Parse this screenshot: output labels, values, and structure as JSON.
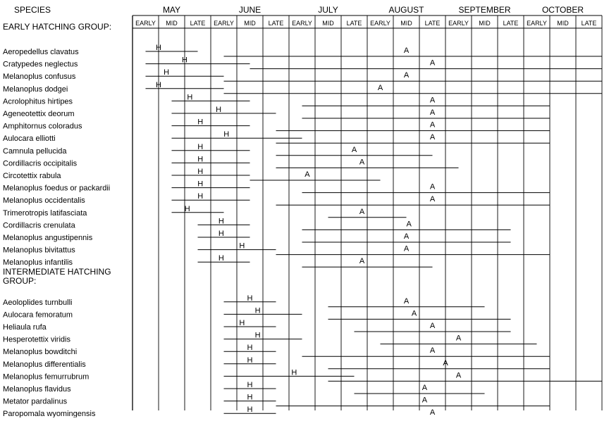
{
  "header": {
    "species_label": "SPECIES",
    "months": [
      "MAY",
      "JUNE",
      "JULY",
      "AUGUST",
      "SEPTEMBER",
      "OCTOBER"
    ],
    "periods": [
      "EARLY",
      "MID",
      "LATE"
    ]
  },
  "marker_labels": {
    "hatch": "H",
    "adult": "A"
  },
  "groups": [
    {
      "title": [
        "EARLY HATCHING GROUP:"
      ],
      "species": [
        {
          "name": "Aeropedellus clavatus",
          "nymph": [
            0.5,
            2.5
          ],
          "hatch": 1.0,
          "adult_period": [
            3.5,
            18
          ],
          "adult": 10.5
        },
        {
          "name": "Cratypedes neglectus",
          "nymph": [
            0.5,
            4.5
          ],
          "hatch": 2.0,
          "adult_period": [
            4.5,
            18
          ],
          "adult": 11.5
        },
        {
          "name": "Melanoplus confusus",
          "nymph": [
            0.5,
            3.5
          ],
          "hatch": 1.3,
          "adult_period": [
            3.5,
            18
          ],
          "adult": 10.5
        },
        {
          "name": "Melanoplus dodgei",
          "nymph": [
            0.5,
            3.5
          ],
          "hatch": 1.0,
          "adult_period": [
            3.5,
            18
          ],
          "adult": 9.5
        },
        {
          "name": "Acrolophitus hirtipes",
          "nymph": [
            1.5,
            4.5
          ],
          "hatch": 2.2,
          "adult_period": [
            6.5,
            16
          ],
          "adult": 11.5
        },
        {
          "name": "Ageneotettix deorum",
          "nymph": [
            1.5,
            5.5
          ],
          "hatch": 3.3,
          "adult_period": [
            6.5,
            16
          ],
          "adult": 11.5
        },
        {
          "name": "Amphitornus coloradus",
          "nymph": [
            1.5,
            4.5
          ],
          "hatch": 2.6,
          "adult_period": [
            5.5,
            16
          ],
          "adult": 11.5
        },
        {
          "name": "Aulocara elliotti",
          "nymph": [
            1.5,
            6.5
          ],
          "hatch": 3.6,
          "adult_period": [
            5.5,
            16
          ],
          "adult": 11.5
        },
        {
          "name": "Camnula pellucida",
          "nymph": [
            1.5,
            4.5
          ],
          "hatch": 2.6,
          "adult_period": [
            5.5,
            11.5
          ],
          "adult": 8.5
        },
        {
          "name": "Cordillacris occipitalis",
          "nymph": [
            1.5,
            4.5
          ],
          "hatch": 2.6,
          "adult_period": [
            5.5,
            12.5
          ],
          "adult": 8.8
        },
        {
          "name": "Circotettix rabula",
          "nymph": [
            1.5,
            4.5
          ],
          "hatch": 2.6,
          "adult_period": [
            4.5,
            9.5
          ],
          "adult": 6.7
        },
        {
          "name": "Melanoplus foedus or packardii",
          "nymph": [
            1.5,
            4.5
          ],
          "hatch": 2.6,
          "adult_period": [
            6.5,
            16
          ],
          "adult": 11.5
        },
        {
          "name": "Melanoplus occidentalis",
          "nymph": [
            1.5,
            4.5
          ],
          "hatch": 2.6,
          "adult_period": [
            5.5,
            16
          ],
          "adult": 11.5
        },
        {
          "name": "Trimerotropis latifasciata",
          "nymph": [
            1.5,
            3.5
          ],
          "hatch": 2.1,
          "adult_period": [
            7.5,
            10.5
          ],
          "adult": 8.8
        },
        {
          "name": "Cordillacris crenulata",
          "nymph": [
            2.5,
            4.5
          ],
          "hatch": 3.4,
          "adult_period": [
            6.5,
            14.5
          ],
          "adult": 10.6
        },
        {
          "name": "Melanoplus angustipennis",
          "nymph": [
            2.5,
            4.5
          ],
          "hatch": 3.4,
          "adult_period": [
            6.5,
            14.5
          ],
          "adult": 10.5
        },
        {
          "name": "Melanoplus bivitattus",
          "nymph": [
            2.5,
            5.5
          ],
          "hatch": 4.2,
          "adult_period": [
            5.5,
            16
          ],
          "adult": 10.5
        },
        {
          "name": "Melanoplus infantilis",
          "nymph": [
            2.5,
            4.5
          ],
          "hatch": 3.4,
          "adult_period": [
            6.5,
            11.5
          ],
          "adult": 8.8
        }
      ]
    },
    {
      "title": [
        "INTERMEDIATE HATCHING",
        "GROUP:"
      ],
      "species": [
        {
          "name": "Aeoloplides turnbulli",
          "nymph": [
            3.5,
            5.5
          ],
          "hatch": 4.5,
          "adult_period": [
            7.5,
            13.5
          ],
          "adult": 10.5
        },
        {
          "name": "Aulocara femoratum",
          "nymph": [
            3.5,
            6.5
          ],
          "hatch": 4.8,
          "adult_period": [
            7.5,
            14.5
          ],
          "adult": 10.8
        },
        {
          "name": "Heliaula rufa",
          "nymph": [
            3.5,
            5.5
          ],
          "hatch": 4.2,
          "adult_period": [
            8.5,
            14.5
          ],
          "adult": 11.5
        },
        {
          "name": "Hesperotettix viridis",
          "nymph": [
            3.5,
            6.5
          ],
          "hatch": 4.8,
          "adult_period": [
            9.5,
            15.5
          ],
          "adult": 12.5
        },
        {
          "name": "Melanoplus bowditchi",
          "nymph": [
            3.5,
            5.5
          ],
          "hatch": 4.5,
          "adult_period": [
            6.5,
            16
          ],
          "adult": 11.5
        },
        {
          "name": "Melanoplus differentialis",
          "nymph": [
            3.5,
            5.5
          ],
          "hatch": 4.5,
          "adult_period": [
            7.5,
            16
          ],
          "adult": 12.0
        },
        {
          "name": "Melanoplus femurrubrum",
          "nymph": [
            3.5,
            8.5
          ],
          "hatch": 6.2,
          "adult_period": [
            7.5,
            18
          ],
          "adult": 12.5
        },
        {
          "name": "Melanoplus flavidus",
          "nymph": [
            3.5,
            5.5
          ],
          "hatch": 4.5,
          "adult_period": [
            8.5,
            13.5
          ],
          "adult": 11.2
        },
        {
          "name": "Metator pardalinus",
          "nymph": [
            3.5,
            5.5
          ],
          "hatch": 4.5,
          "adult_period": [
            5.5,
            16
          ],
          "adult": 11.2
        },
        {
          "name": "Paropomala wyomingensis",
          "nymph": [
            3.5,
            5.5
          ],
          "hatch": 4.5,
          "adult_period": [
            6.5,
            16
          ],
          "adult": 11.5
        }
      ]
    }
  ]
}
